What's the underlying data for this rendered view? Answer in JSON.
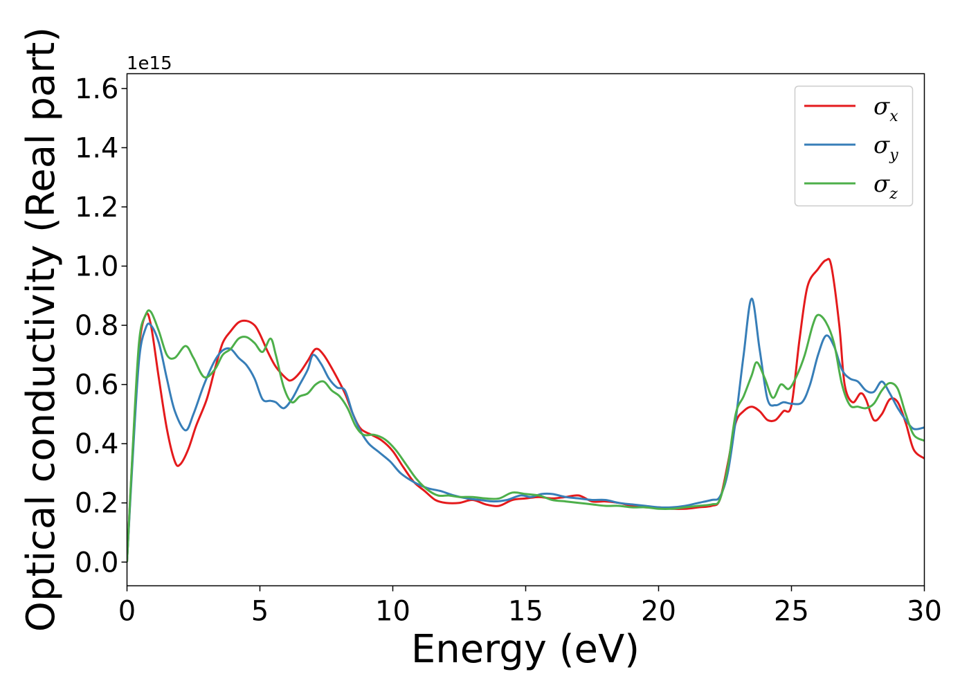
{
  "chart_data": {
    "type": "line",
    "title": "",
    "xlabel": "Energy (eV)",
    "ylabel": "Optical conductivity (Real part)",
    "y_offset_label": "1e15",
    "xlim": [
      0,
      30
    ],
    "ylim": [
      -0.08,
      1.65
    ],
    "x_ticks": [
      0,
      5,
      10,
      15,
      20,
      25,
      30
    ],
    "x_tick_labels": [
      "0",
      "5",
      "10",
      "15",
      "20",
      "25",
      "30"
    ],
    "y_ticks": [
      0.0,
      0.2,
      0.4,
      0.6,
      0.8,
      1.0,
      1.2,
      1.4,
      1.6
    ],
    "y_tick_labels": [
      "0.0",
      "0.2",
      "0.4",
      "0.6",
      "0.8",
      "1.0",
      "1.2",
      "1.4",
      "1.6"
    ],
    "grid": false,
    "legend_position": "top-right",
    "series": [
      {
        "name": "σ",
        "subscript": "x",
        "color": "#e41a1c",
        "points": [
          [
            0,
            0
          ],
          [
            0.2,
            0.35
          ],
          [
            0.45,
            0.72
          ],
          [
            0.7,
            0.835
          ],
          [
            0.9,
            0.8
          ],
          [
            1.2,
            0.62
          ],
          [
            1.5,
            0.45
          ],
          [
            1.8,
            0.34
          ],
          [
            2.0,
            0.33
          ],
          [
            2.3,
            0.38
          ],
          [
            2.6,
            0.46
          ],
          [
            3.0,
            0.55
          ],
          [
            3.3,
            0.65
          ],
          [
            3.6,
            0.74
          ],
          [
            3.9,
            0.78
          ],
          [
            4.2,
            0.81
          ],
          [
            4.5,
            0.815
          ],
          [
            4.8,
            0.8
          ],
          [
            5.0,
            0.77
          ],
          [
            5.3,
            0.71
          ],
          [
            5.6,
            0.66
          ],
          [
            6.0,
            0.62
          ],
          [
            6.2,
            0.615
          ],
          [
            6.5,
            0.64
          ],
          [
            6.8,
            0.68
          ],
          [
            7.1,
            0.72
          ],
          [
            7.4,
            0.7
          ],
          [
            7.8,
            0.64
          ],
          [
            8.2,
            0.57
          ],
          [
            8.5,
            0.5
          ],
          [
            8.8,
            0.45
          ],
          [
            9.2,
            0.43
          ],
          [
            9.6,
            0.41
          ],
          [
            10.0,
            0.375
          ],
          [
            10.4,
            0.32
          ],
          [
            10.8,
            0.27
          ],
          [
            11.2,
            0.24
          ],
          [
            11.6,
            0.21
          ],
          [
            12.0,
            0.2
          ],
          [
            12.5,
            0.2
          ],
          [
            13.0,
            0.21
          ],
          [
            13.5,
            0.195
          ],
          [
            14.0,
            0.19
          ],
          [
            14.5,
            0.21
          ],
          [
            15.0,
            0.215
          ],
          [
            15.5,
            0.22
          ],
          [
            16.0,
            0.215
          ],
          [
            16.5,
            0.22
          ],
          [
            17.0,
            0.225
          ],
          [
            17.5,
            0.205
          ],
          [
            18.0,
            0.205
          ],
          [
            18.5,
            0.2
          ],
          [
            19.0,
            0.19
          ],
          [
            19.5,
            0.185
          ],
          [
            20.0,
            0.185
          ],
          [
            20.5,
            0.18
          ],
          [
            21.0,
            0.18
          ],
          [
            21.5,
            0.185
          ],
          [
            22.0,
            0.19
          ],
          [
            22.3,
            0.21
          ],
          [
            22.6,
            0.33
          ],
          [
            22.9,
            0.47
          ],
          [
            23.2,
            0.51
          ],
          [
            23.5,
            0.525
          ],
          [
            23.8,
            0.51
          ],
          [
            24.1,
            0.48
          ],
          [
            24.4,
            0.48
          ],
          [
            24.7,
            0.51
          ],
          [
            25.0,
            0.53
          ],
          [
            25.3,
            0.75
          ],
          [
            25.6,
            0.93
          ],
          [
            26.0,
            0.99
          ],
          [
            26.3,
            1.02
          ],
          [
            26.5,
            1.0
          ],
          [
            26.8,
            0.8
          ],
          [
            27.0,
            0.6
          ],
          [
            27.3,
            0.54
          ],
          [
            27.6,
            0.57
          ],
          [
            27.8,
            0.55
          ],
          [
            28.1,
            0.48
          ],
          [
            28.4,
            0.5
          ],
          [
            28.7,
            0.55
          ],
          [
            29.0,
            0.54
          ],
          [
            29.3,
            0.47
          ],
          [
            29.6,
            0.38
          ],
          [
            30.0,
            0.35
          ]
        ]
      },
      {
        "name": "σ",
        "subscript": "y",
        "color": "#377eb8",
        "points": [
          [
            0,
            0
          ],
          [
            0.2,
            0.33
          ],
          [
            0.45,
            0.68
          ],
          [
            0.7,
            0.79
          ],
          [
            0.9,
            0.8
          ],
          [
            1.2,
            0.74
          ],
          [
            1.5,
            0.62
          ],
          [
            1.8,
            0.51
          ],
          [
            2.2,
            0.445
          ],
          [
            2.5,
            0.5
          ],
          [
            2.9,
            0.6
          ],
          [
            3.3,
            0.68
          ],
          [
            3.6,
            0.715
          ],
          [
            3.9,
            0.72
          ],
          [
            4.2,
            0.69
          ],
          [
            4.5,
            0.665
          ],
          [
            4.8,
            0.62
          ],
          [
            5.1,
            0.55
          ],
          [
            5.4,
            0.545
          ],
          [
            5.6,
            0.54
          ],
          [
            5.9,
            0.52
          ],
          [
            6.2,
            0.55
          ],
          [
            6.5,
            0.6
          ],
          [
            6.8,
            0.65
          ],
          [
            7.0,
            0.7
          ],
          [
            7.3,
            0.67
          ],
          [
            7.6,
            0.62
          ],
          [
            7.9,
            0.59
          ],
          [
            8.2,
            0.58
          ],
          [
            8.5,
            0.5
          ],
          [
            8.8,
            0.44
          ],
          [
            9.1,
            0.4
          ],
          [
            9.5,
            0.37
          ],
          [
            9.9,
            0.34
          ],
          [
            10.3,
            0.3
          ],
          [
            10.8,
            0.27
          ],
          [
            11.3,
            0.25
          ],
          [
            11.8,
            0.24
          ],
          [
            12.3,
            0.225
          ],
          [
            12.8,
            0.215
          ],
          [
            13.3,
            0.21
          ],
          [
            13.8,
            0.205
          ],
          [
            14.3,
            0.21
          ],
          [
            14.8,
            0.225
          ],
          [
            15.2,
            0.22
          ],
          [
            15.6,
            0.23
          ],
          [
            16.0,
            0.23
          ],
          [
            16.5,
            0.22
          ],
          [
            17.0,
            0.215
          ],
          [
            17.5,
            0.21
          ],
          [
            18.0,
            0.21
          ],
          [
            18.5,
            0.2
          ],
          [
            19.0,
            0.195
          ],
          [
            19.5,
            0.19
          ],
          [
            20.0,
            0.185
          ],
          [
            20.5,
            0.185
          ],
          [
            21.0,
            0.19
          ],
          [
            21.5,
            0.2
          ],
          [
            22.0,
            0.21
          ],
          [
            22.3,
            0.22
          ],
          [
            22.6,
            0.3
          ],
          [
            22.9,
            0.48
          ],
          [
            23.2,
            0.7
          ],
          [
            23.5,
            0.89
          ],
          [
            23.8,
            0.72
          ],
          [
            24.1,
            0.55
          ],
          [
            24.4,
            0.53
          ],
          [
            24.7,
            0.54
          ],
          [
            25.0,
            0.535
          ],
          [
            25.4,
            0.54
          ],
          [
            25.7,
            0.6
          ],
          [
            26.0,
            0.7
          ],
          [
            26.3,
            0.765
          ],
          [
            26.6,
            0.73
          ],
          [
            26.9,
            0.65
          ],
          [
            27.2,
            0.62
          ],
          [
            27.5,
            0.61
          ],
          [
            27.8,
            0.58
          ],
          [
            28.1,
            0.575
          ],
          [
            28.4,
            0.61
          ],
          [
            28.7,
            0.57
          ],
          [
            29.0,
            0.52
          ],
          [
            29.3,
            0.48
          ],
          [
            29.6,
            0.45
          ],
          [
            30.0,
            0.455
          ]
        ]
      },
      {
        "name": "σ",
        "subscript": "z",
        "color": "#4daf4a",
        "points": [
          [
            0,
            0
          ],
          [
            0.2,
            0.36
          ],
          [
            0.45,
            0.74
          ],
          [
            0.7,
            0.835
          ],
          [
            0.9,
            0.845
          ],
          [
            1.2,
            0.78
          ],
          [
            1.5,
            0.7
          ],
          [
            1.8,
            0.69
          ],
          [
            2.2,
            0.73
          ],
          [
            2.5,
            0.69
          ],
          [
            2.9,
            0.625
          ],
          [
            3.3,
            0.65
          ],
          [
            3.6,
            0.7
          ],
          [
            3.9,
            0.72
          ],
          [
            4.2,
            0.755
          ],
          [
            4.5,
            0.76
          ],
          [
            4.8,
            0.74
          ],
          [
            5.1,
            0.71
          ],
          [
            5.4,
            0.755
          ],
          [
            5.6,
            0.7
          ],
          [
            5.9,
            0.59
          ],
          [
            6.2,
            0.54
          ],
          [
            6.5,
            0.56
          ],
          [
            6.8,
            0.57
          ],
          [
            7.1,
            0.6
          ],
          [
            7.4,
            0.61
          ],
          [
            7.7,
            0.58
          ],
          [
            8.0,
            0.56
          ],
          [
            8.3,
            0.52
          ],
          [
            8.6,
            0.46
          ],
          [
            8.9,
            0.43
          ],
          [
            9.3,
            0.43
          ],
          [
            9.7,
            0.415
          ],
          [
            10.1,
            0.38
          ],
          [
            10.5,
            0.33
          ],
          [
            10.9,
            0.28
          ],
          [
            11.3,
            0.245
          ],
          [
            11.7,
            0.225
          ],
          [
            12.1,
            0.225
          ],
          [
            12.5,
            0.22
          ],
          [
            13.0,
            0.22
          ],
          [
            13.5,
            0.215
          ],
          [
            14.0,
            0.215
          ],
          [
            14.5,
            0.235
          ],
          [
            15.0,
            0.23
          ],
          [
            15.5,
            0.225
          ],
          [
            16.0,
            0.21
          ],
          [
            16.5,
            0.205
          ],
          [
            17.0,
            0.2
          ],
          [
            17.5,
            0.195
          ],
          [
            18.0,
            0.19
          ],
          [
            18.5,
            0.19
          ],
          [
            19.0,
            0.185
          ],
          [
            19.5,
            0.185
          ],
          [
            20.0,
            0.18
          ],
          [
            20.5,
            0.18
          ],
          [
            21.0,
            0.185
          ],
          [
            21.5,
            0.19
          ],
          [
            22.0,
            0.195
          ],
          [
            22.3,
            0.21
          ],
          [
            22.6,
            0.32
          ],
          [
            22.9,
            0.5
          ],
          [
            23.2,
            0.56
          ],
          [
            23.5,
            0.63
          ],
          [
            23.7,
            0.675
          ],
          [
            24.0,
            0.62
          ],
          [
            24.3,
            0.555
          ],
          [
            24.6,
            0.6
          ],
          [
            24.9,
            0.585
          ],
          [
            25.2,
            0.63
          ],
          [
            25.5,
            0.7
          ],
          [
            25.8,
            0.8
          ],
          [
            26.0,
            0.835
          ],
          [
            26.3,
            0.81
          ],
          [
            26.6,
            0.74
          ],
          [
            26.9,
            0.6
          ],
          [
            27.2,
            0.53
          ],
          [
            27.5,
            0.525
          ],
          [
            27.8,
            0.52
          ],
          [
            28.1,
            0.535
          ],
          [
            28.4,
            0.58
          ],
          [
            28.7,
            0.605
          ],
          [
            29.0,
            0.585
          ],
          [
            29.3,
            0.5
          ],
          [
            29.6,
            0.43
          ],
          [
            30.0,
            0.41
          ]
        ]
      }
    ]
  }
}
